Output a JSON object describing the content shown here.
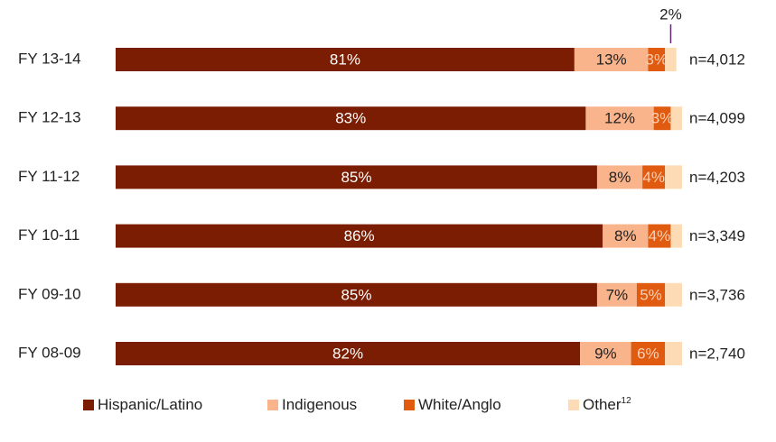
{
  "chart_data": {
    "type": "stacked-bar-horizontal",
    "categories": [
      "FY 13-14",
      "FY 12-13",
      "FY 11-12",
      "FY 10-11",
      "FY 09-10",
      "FY 08-09"
    ],
    "xlim": [
      0,
      100
    ],
    "series": [
      {
        "name": "Hispanic/Latino",
        "color": "#7a1d02",
        "label_color": "#ffffff",
        "values": [
          81,
          83,
          85,
          86,
          85,
          82
        ],
        "value_labels": [
          "81%",
          "83%",
          "85%",
          "86%",
          "85%",
          "82%"
        ]
      },
      {
        "name": "Indigenous",
        "color": "#f9b48c",
        "label_color": "#222222",
        "values": [
          13,
          12,
          8,
          8,
          7,
          9
        ],
        "value_labels": [
          "13%",
          "12%",
          "8%",
          "8%",
          "7%",
          "9%"
        ]
      },
      {
        "name": "White/Anglo",
        "color": "#e05a10",
        "label_color": "#fbd0b4",
        "values": [
          3,
          3,
          4,
          4,
          5,
          6
        ],
        "value_labels": [
          "3%",
          "3%",
          "4%",
          "4%",
          "5%",
          "6%"
        ]
      },
      {
        "name": "Other",
        "note": "12",
        "color": "#fddcb5",
        "label_color": "#222222",
        "values": [
          2,
          2,
          3,
          2,
          3,
          3
        ],
        "value_labels": [
          "2%",
          null,
          null,
          null,
          null,
          null
        ]
      }
    ],
    "n_labels": [
      "n=4,012",
      "n=4,099",
      "n=4,203",
      "n=3,349",
      "n=3,736",
      "n=2,740"
    ]
  }
}
